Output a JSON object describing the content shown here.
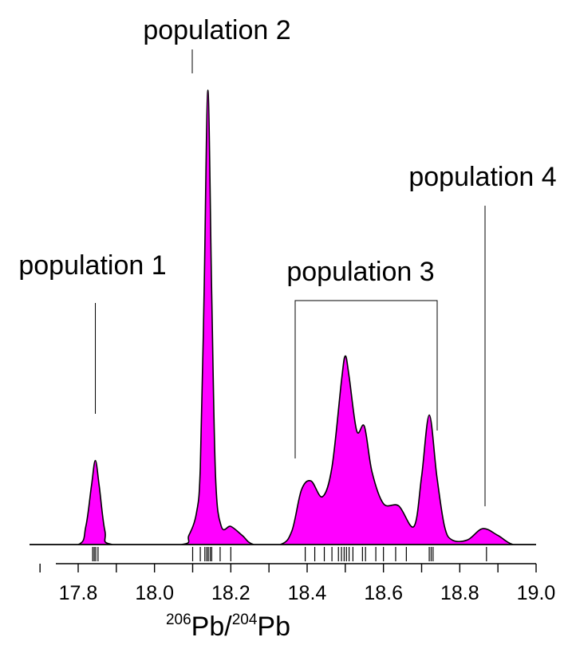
{
  "chart_data": {
    "type": "area",
    "title": "",
    "xlabel": {
      "sup1": "206",
      "main1": "Pb/",
      "sup2": "204",
      "main2": "Pb"
    },
    "ylabel": "",
    "xlim": [
      17.7,
      19.0
    ],
    "ylim": [
      0,
      1
    ],
    "x_ticks": [
      17.8,
      18.0,
      18.2,
      18.4,
      18.6,
      18.8,
      19.0
    ],
    "x_tick_labels": [
      "17.8",
      "18.0",
      "18.2",
      "18.4",
      "18.6",
      "18.8",
      "19.0"
    ],
    "fill_color": "#FF00FF",
    "line_color": "#000000",
    "density": [
      [
        17.7,
        0.0
      ],
      [
        17.8,
        0.0
      ],
      [
        17.82,
        0.04
      ],
      [
        17.835,
        0.13
      ],
      [
        17.845,
        0.185
      ],
      [
        17.855,
        0.13
      ],
      [
        17.87,
        0.03
      ],
      [
        17.89,
        0.0
      ],
      [
        18.07,
        0.0
      ],
      [
        18.09,
        0.02
      ],
      [
        18.11,
        0.07
      ],
      [
        18.12,
        0.17
      ],
      [
        18.13,
        0.55
      ],
      [
        18.14,
        1.0
      ],
      [
        18.15,
        0.55
      ],
      [
        18.16,
        0.15
      ],
      [
        18.175,
        0.04
      ],
      [
        18.2,
        0.04
      ],
      [
        18.23,
        0.02
      ],
      [
        18.26,
        0.0
      ],
      [
        18.33,
        0.0
      ],
      [
        18.36,
        0.03
      ],
      [
        18.385,
        0.12
      ],
      [
        18.41,
        0.14
      ],
      [
        18.44,
        0.105
      ],
      [
        18.465,
        0.17
      ],
      [
        18.49,
        0.36
      ],
      [
        18.5,
        0.415
      ],
      [
        18.51,
        0.37
      ],
      [
        18.53,
        0.25
      ],
      [
        18.55,
        0.26
      ],
      [
        18.57,
        0.16
      ],
      [
        18.6,
        0.09
      ],
      [
        18.64,
        0.085
      ],
      [
        18.68,
        0.04
      ],
      [
        18.7,
        0.15
      ],
      [
        18.72,
        0.285
      ],
      [
        18.74,
        0.15
      ],
      [
        18.76,
        0.04
      ],
      [
        18.78,
        0.01
      ],
      [
        18.82,
        0.01
      ],
      [
        18.86,
        0.035
      ],
      [
        18.9,
        0.02
      ],
      [
        18.94,
        0.0
      ],
      [
        19.0,
        0.0
      ]
    ],
    "rug": [
      17.838,
      17.842,
      17.846,
      17.852,
      18.1,
      18.12,
      18.132,
      18.137,
      18.141,
      18.146,
      18.15,
      18.172,
      18.2,
      18.395,
      18.42,
      18.445,
      18.465,
      18.482,
      18.49,
      18.497,
      18.503,
      18.51,
      18.52,
      18.545,
      18.553,
      18.58,
      18.6,
      18.632,
      18.66,
      18.72,
      18.725,
      18.73,
      18.87
    ],
    "annotations": [
      {
        "text": "population 1",
        "type": "line",
        "x": 17.845,
        "y_top": 0.53,
        "y_bottom": 0.283
      },
      {
        "text": "population 2",
        "type": "line",
        "x": 18.14,
        "y_top": 1.09,
        "y_bottom": 1.04
      },
      {
        "text": "population 3",
        "type": "bracket",
        "x1": 18.395,
        "x2": 18.745,
        "y_top": 0.53,
        "y_bottom": 0.18,
        "y_bottom_right": 0.245
      },
      {
        "text": "population 4",
        "type": "line",
        "x": 18.875,
        "y_top": 0.74,
        "y_bottom": 0.065
      }
    ]
  }
}
